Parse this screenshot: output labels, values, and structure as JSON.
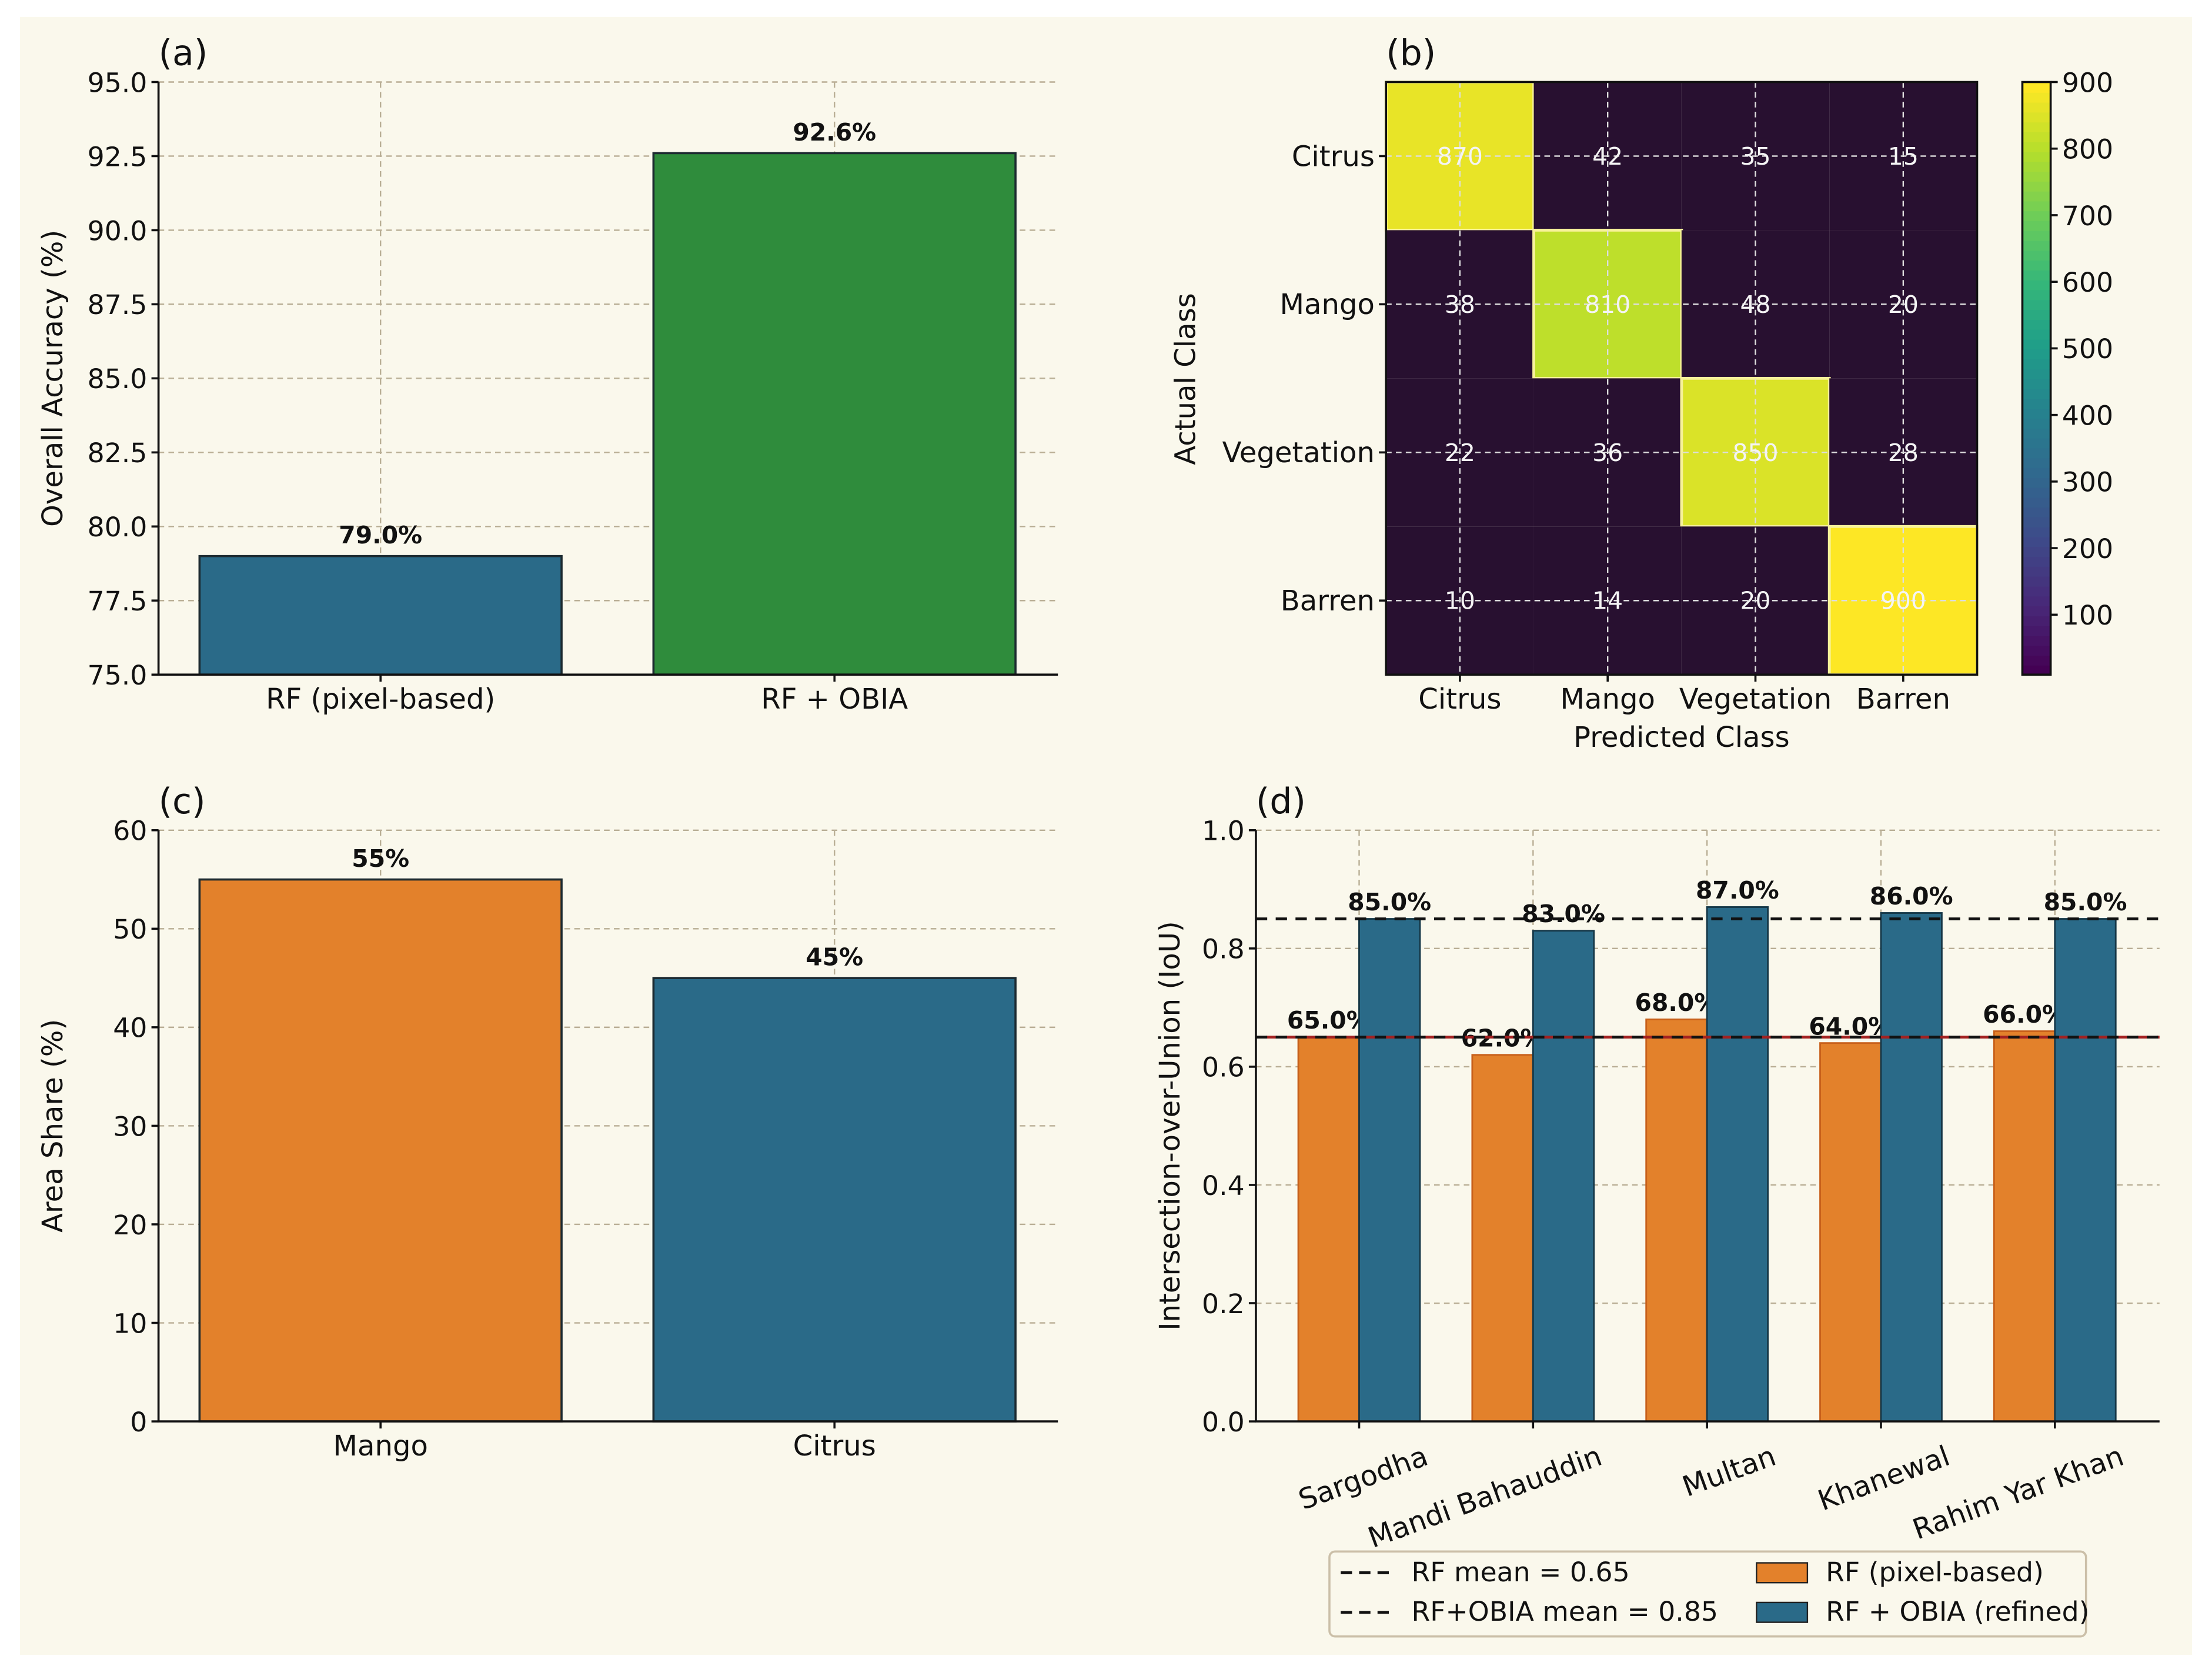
{
  "colors": {
    "background": "#faf8ec",
    "blue": "#2a6a88",
    "green": "#2f8c3c",
    "orange": "#e3812b",
    "red_line": "#a32020"
  },
  "chart_data": [
    {
      "panel": "(a)",
      "type": "bar",
      "categories": [
        "RF (pixel-based)",
        "RF + OBIA"
      ],
      "values": [
        79.0,
        92.6
      ],
      "data_labels": [
        "79.0%",
        "92.6%"
      ],
      "bar_colors": [
        "#2a6a88",
        "#2f8c3c"
      ],
      "ylabel": "Overall Accuracy (%)",
      "ylim": [
        75,
        95
      ],
      "yticks": [
        "75.0",
        "77.5",
        "80.0",
        "82.5",
        "85.0",
        "87.5",
        "90.0",
        "92.5",
        "95.0"
      ],
      "grid": true
    },
    {
      "panel": "(b)",
      "type": "heatmap",
      "x_categories": [
        "Citrus",
        "Mango",
        "Vegetation",
        "Barren"
      ],
      "y_categories": [
        "Citrus",
        "Mango",
        "Vegetation",
        "Barren"
      ],
      "values": [
        [
          870,
          42,
          35,
          15
        ],
        [
          38,
          810,
          48,
          20
        ],
        [
          22,
          36,
          850,
          28
        ],
        [
          10,
          14,
          20,
          900
        ]
      ],
      "xlabel": "Predicted Class",
      "ylabel": "Actual Class",
      "colormap": "viridis",
      "colorbar_range": [
        10,
        900
      ],
      "colorbar_ticks": [
        "100",
        "200",
        "300",
        "400",
        "500",
        "600",
        "700",
        "800",
        "900"
      ]
    },
    {
      "panel": "(c)",
      "type": "bar",
      "categories": [
        "Mango",
        "Citrus"
      ],
      "values": [
        55,
        45
      ],
      "data_labels": [
        "55%",
        "45%"
      ],
      "bar_colors": [
        "#e3812b",
        "#2a6a88"
      ],
      "ylabel": "Area Share (%)",
      "ylim": [
        0,
        60
      ],
      "yticks": [
        "0",
        "10",
        "20",
        "30",
        "40",
        "50",
        "60"
      ],
      "grid": true
    },
    {
      "panel": "(d)",
      "type": "bar",
      "categories": [
        "Sargodha",
        "Mandi Bahauddin",
        "Multan",
        "Khanewal",
        "Rahim Yar Khan"
      ],
      "series": [
        {
          "name": "RF (pixel-based)",
          "values": [
            0.65,
            0.62,
            0.68,
            0.64,
            0.66
          ],
          "labels": [
            "65.0%",
            "62.0%",
            "68.0%",
            "64.0%",
            "66.0%"
          ],
          "color": "#e3812b"
        },
        {
          "name": "RF + OBIA (refined)",
          "values": [
            0.85,
            0.83,
            0.87,
            0.86,
            0.85
          ],
          "labels": [
            "85.0%",
            "83.0%",
            "87.0%",
            "86.0%",
            "85.0%"
          ],
          "color": "#2a6a88"
        }
      ],
      "hlines": [
        {
          "name": "RF mean = 0.65",
          "value": 0.65
        },
        {
          "name": "RF+OBIA mean = 0.85",
          "value": 0.85
        }
      ],
      "ylabel": "Intersection-over-Union (IoU)",
      "ylim": [
        0,
        1.0
      ],
      "yticks": [
        "0.0",
        "0.2",
        "0.4",
        "0.6",
        "0.8",
        "1.0"
      ],
      "legend": "bottom-center",
      "grid": true
    }
  ]
}
